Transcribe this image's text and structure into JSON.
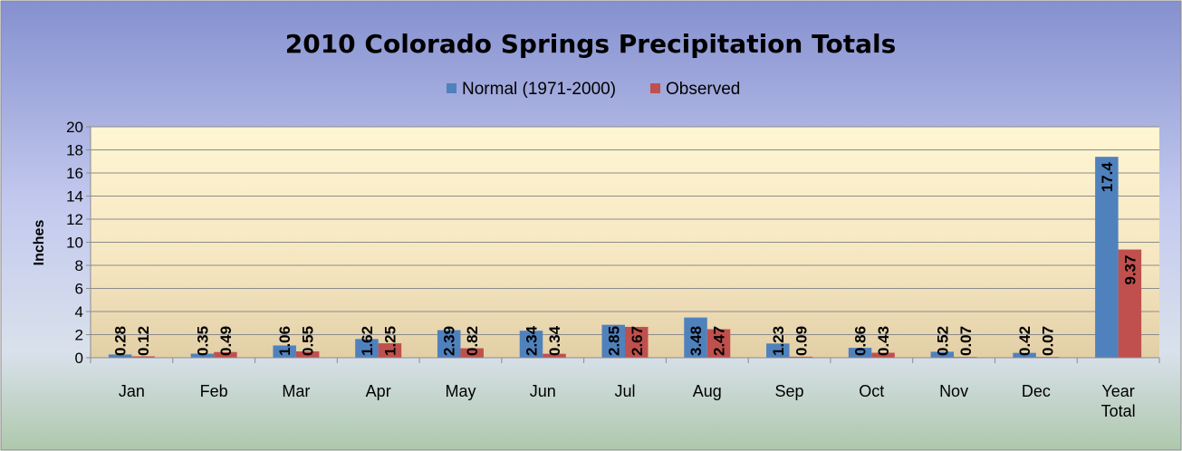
{
  "chart_data": {
    "type": "bar",
    "title": "2010 Colorado Springs Precipitation Totals",
    "ylabel": "Inches",
    "xlabel": "",
    "ylim": [
      0,
      20
    ],
    "yticks": [
      0,
      2,
      4,
      6,
      8,
      10,
      12,
      14,
      16,
      18,
      20
    ],
    "grid": true,
    "legend": "top-center",
    "categories": [
      [
        "Jan"
      ],
      [
        "Feb"
      ],
      [
        "Mar"
      ],
      [
        "Apr"
      ],
      [
        "May"
      ],
      [
        "Jun"
      ],
      [
        "Jul"
      ],
      [
        "Aug"
      ],
      [
        "Sep"
      ],
      [
        "Oct"
      ],
      [
        "Nov"
      ],
      [
        "Dec"
      ],
      [
        "Year",
        "Total"
      ]
    ],
    "series": [
      {
        "name": "Normal (1971-2000)",
        "color": "#4f81bd",
        "values": [
          0.28,
          0.35,
          1.06,
          1.62,
          2.39,
          2.34,
          2.85,
          3.48,
          1.23,
          0.86,
          0.52,
          0.42,
          17.4
        ],
        "labels": [
          "0.28",
          "0.35",
          "1.06",
          "1.62",
          "2.39",
          "2.34",
          "2.85",
          "3.48",
          "1.23",
          "0.86",
          "0.52",
          "0.42",
          "17.4"
        ]
      },
      {
        "name": "Observed",
        "color": "#c0504d",
        "values": [
          0.12,
          0.49,
          0.55,
          1.25,
          0.82,
          0.34,
          2.67,
          2.47,
          0.09,
          0.43,
          0.07,
          0.07,
          9.37
        ],
        "labels": [
          "0.12",
          "0.49",
          "0.55",
          "1.25",
          "0.82",
          "0.34",
          "2.67",
          "2.47",
          "0.09",
          "0.43",
          "0.07",
          "0.07",
          "9.37"
        ]
      }
    ]
  }
}
